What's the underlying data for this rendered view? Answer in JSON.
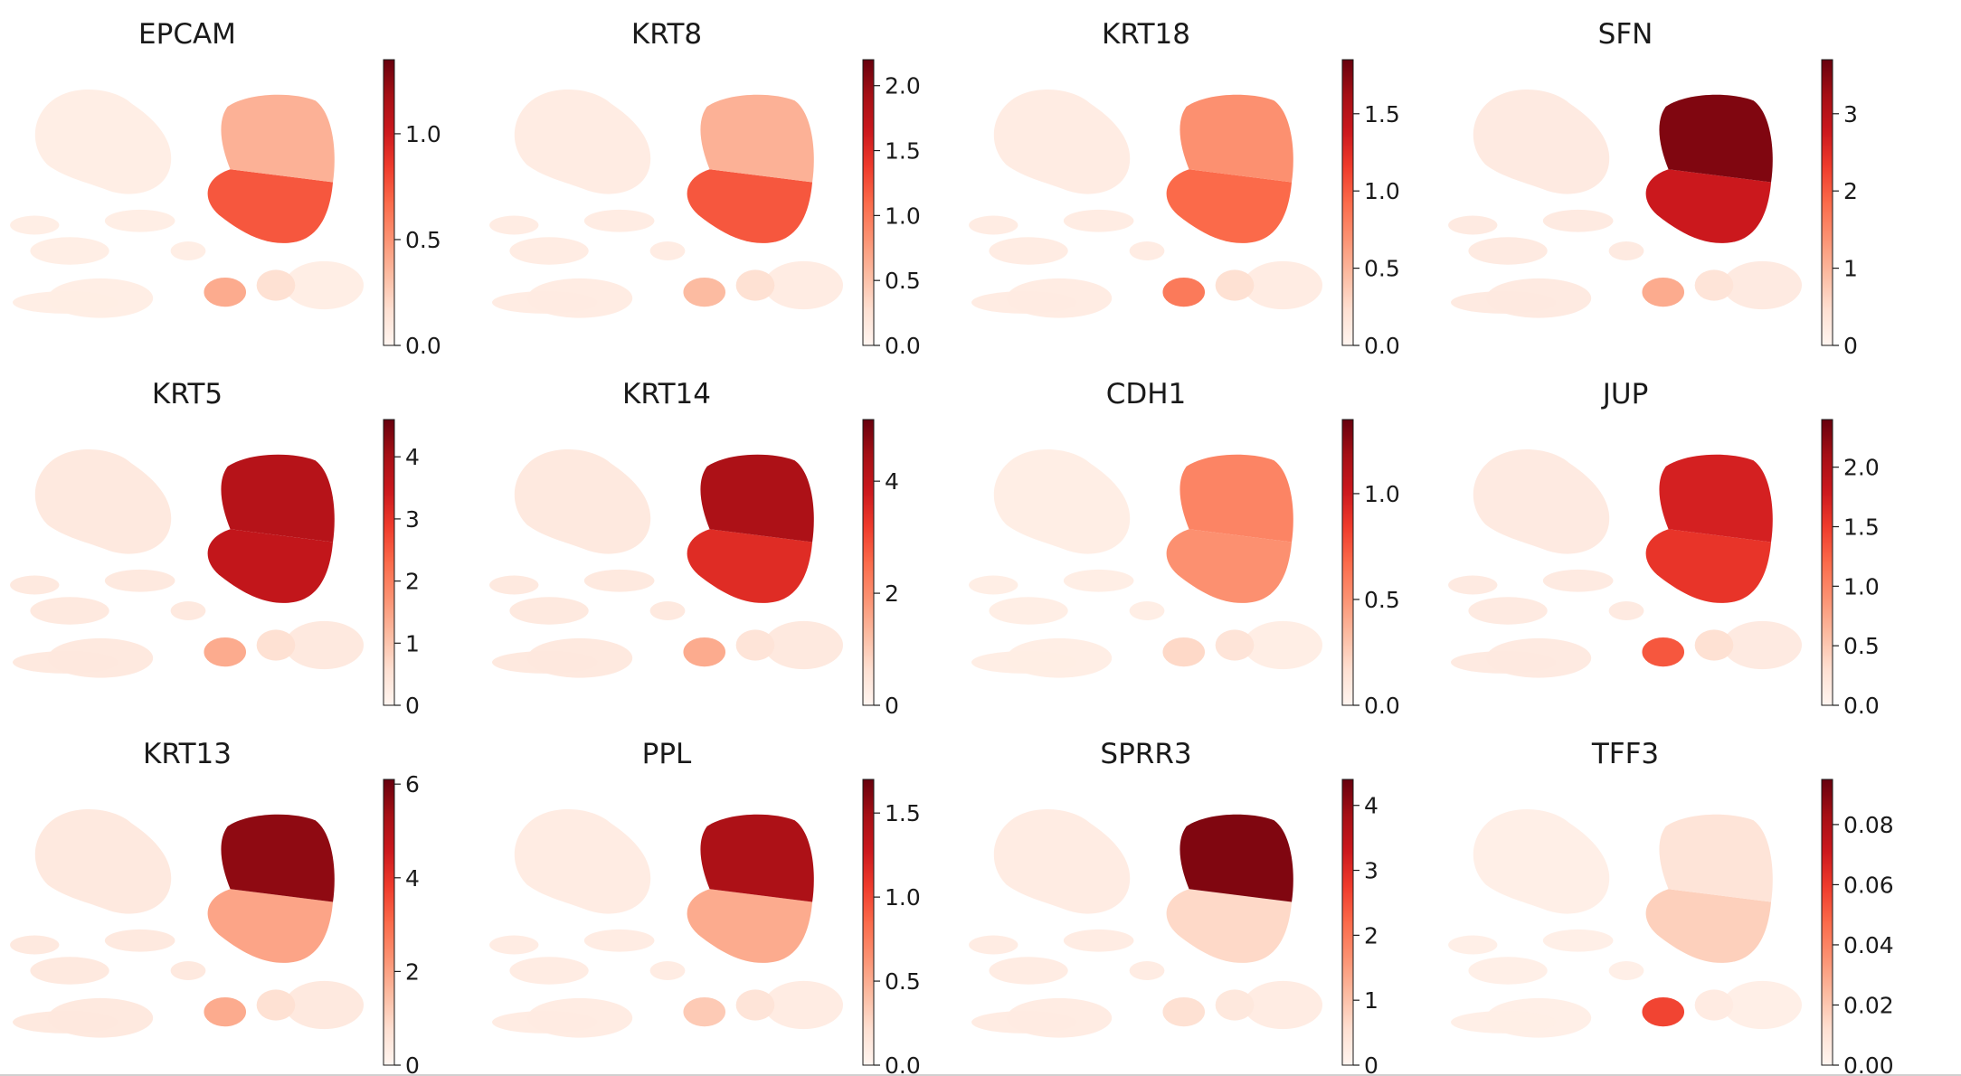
{
  "figure": {
    "colormap": "Reds",
    "colormap_stops": [
      "#fff5f0",
      "#fee0d2",
      "#fcbba1",
      "#fc9272",
      "#fb6a4a",
      "#ef3b2c",
      "#cb181d",
      "#a50f15",
      "#67000d"
    ]
  },
  "chart_data": [
    {
      "type": "scatter",
      "title": "EPCAM",
      "intensity": {
        "top_cluster": 0.28,
        "middle_cluster": 0.55,
        "lower_left_cluster": 0.3,
        "lower_right_cluster": 0.12,
        "background": 0.05
      },
      "colorbar": {
        "vmin": 0.0,
        "vmax": 1.35,
        "ticks": [
          0.0,
          0.5,
          1.0
        ],
        "tick_labels": [
          "0.0",
          "0.5",
          "1.0"
        ]
      }
    },
    {
      "type": "scatter",
      "title": "KRT8",
      "intensity": {
        "top_cluster": 0.28,
        "middle_cluster": 0.55,
        "lower_left_cluster": 0.25,
        "lower_right_cluster": 0.12,
        "background": 0.06
      },
      "colorbar": {
        "vmin": 0.0,
        "vmax": 2.2,
        "ticks": [
          0.0,
          0.5,
          1.0,
          1.5,
          2.0
        ],
        "tick_labels": [
          "0.0",
          "0.5",
          "1.0",
          "1.5",
          "2.0"
        ]
      }
    },
    {
      "type": "scatter",
      "title": "KRT18",
      "intensity": {
        "top_cluster": 0.38,
        "middle_cluster": 0.5,
        "lower_left_cluster": 0.45,
        "lower_right_cluster": 0.12,
        "background": 0.06
      },
      "colorbar": {
        "vmin": 0.0,
        "vmax": 1.85,
        "ticks": [
          0.0,
          0.5,
          1.0,
          1.5
        ],
        "tick_labels": [
          "0.0",
          "0.5",
          "1.0",
          "1.5"
        ]
      }
    },
    {
      "type": "scatter",
      "title": "SFN",
      "intensity": {
        "top_cluster": 0.95,
        "middle_cluster": 0.75,
        "lower_left_cluster": 0.3,
        "lower_right_cluster": 0.1,
        "background": 0.07
      },
      "colorbar": {
        "vmin": 0,
        "vmax": 3.7,
        "ticks": [
          0,
          1,
          2,
          3
        ],
        "tick_labels": [
          "0",
          "1",
          "2",
          "3"
        ]
      }
    },
    {
      "type": "scatter",
      "title": "KRT5",
      "intensity": {
        "top_cluster": 0.82,
        "middle_cluster": 0.78,
        "lower_left_cluster": 0.3,
        "lower_right_cluster": 0.12,
        "background": 0.08
      },
      "colorbar": {
        "vmin": 0,
        "vmax": 4.6,
        "ticks": [
          0,
          1,
          2,
          3,
          4
        ],
        "tick_labels": [
          "0",
          "1",
          "2",
          "3",
          "4"
        ]
      }
    },
    {
      "type": "scatter",
      "title": "KRT14",
      "intensity": {
        "top_cluster": 0.85,
        "middle_cluster": 0.68,
        "lower_left_cluster": 0.3,
        "lower_right_cluster": 0.1,
        "background": 0.08
      },
      "colorbar": {
        "vmin": 0,
        "vmax": 5.1,
        "ticks": [
          0,
          2,
          4
        ],
        "tick_labels": [
          "0",
          "2",
          "4"
        ]
      }
    },
    {
      "type": "scatter",
      "title": "CDH1",
      "intensity": {
        "top_cluster": 0.42,
        "middle_cluster": 0.38,
        "lower_left_cluster": 0.15,
        "lower_right_cluster": 0.1,
        "background": 0.05
      },
      "colorbar": {
        "vmin": 0.0,
        "vmax": 1.35,
        "ticks": [
          0.0,
          0.5,
          1.0
        ],
        "tick_labels": [
          "0.0",
          "0.5",
          "1.0"
        ]
      }
    },
    {
      "type": "scatter",
      "title": "JUP",
      "intensity": {
        "top_cluster": 0.72,
        "middle_cluster": 0.65,
        "lower_left_cluster": 0.55,
        "lower_right_cluster": 0.12,
        "background": 0.07
      },
      "colorbar": {
        "vmin": 0.0,
        "vmax": 2.4,
        "ticks": [
          0.0,
          0.5,
          1.0,
          1.5,
          2.0
        ],
        "tick_labels": [
          "0.0",
          "0.5",
          "1.0",
          "1.5",
          "2.0"
        ]
      }
    },
    {
      "type": "scatter",
      "title": "KRT13",
      "intensity": {
        "top_cluster": 0.92,
        "middle_cluster": 0.32,
        "lower_left_cluster": 0.3,
        "lower_right_cluster": 0.12,
        "background": 0.08
      },
      "colorbar": {
        "vmin": 0,
        "vmax": 6.1,
        "ticks": [
          0,
          2,
          4,
          6
        ],
        "tick_labels": [
          "0",
          "2",
          "4",
          "6"
        ]
      }
    },
    {
      "type": "scatter",
      "title": "PPL",
      "intensity": {
        "top_cluster": 0.85,
        "middle_cluster": 0.3,
        "lower_left_cluster": 0.2,
        "lower_right_cluster": 0.1,
        "background": 0.06
      },
      "colorbar": {
        "vmin": 0.0,
        "vmax": 1.7,
        "ticks": [
          0.0,
          0.5,
          1.0,
          1.5
        ],
        "tick_labels": [
          "0.0",
          "0.5",
          "1.0",
          "1.5"
        ]
      }
    },
    {
      "type": "scatter",
      "title": "SPRR3",
      "intensity": {
        "top_cluster": 0.95,
        "middle_cluster": 0.15,
        "lower_left_cluster": 0.12,
        "lower_right_cluster": 0.08,
        "background": 0.06
      },
      "colorbar": {
        "vmin": 0,
        "vmax": 4.4,
        "ticks": [
          0,
          1,
          2,
          3,
          4
        ],
        "tick_labels": [
          "0",
          "1",
          "2",
          "3",
          "4"
        ]
      }
    },
    {
      "type": "scatter",
      "title": "TFF3",
      "intensity": {
        "top_cluster": 0.1,
        "middle_cluster": 0.18,
        "lower_left_cluster": 0.6,
        "lower_right_cluster": 0.06,
        "background": 0.04
      },
      "colorbar": {
        "vmin": 0.0,
        "vmax": 0.095,
        "ticks": [
          0.0,
          0.02,
          0.04,
          0.06,
          0.08
        ],
        "tick_labels": [
          "0.00",
          "0.02",
          "0.04",
          "0.06",
          "0.08"
        ]
      }
    }
  ]
}
